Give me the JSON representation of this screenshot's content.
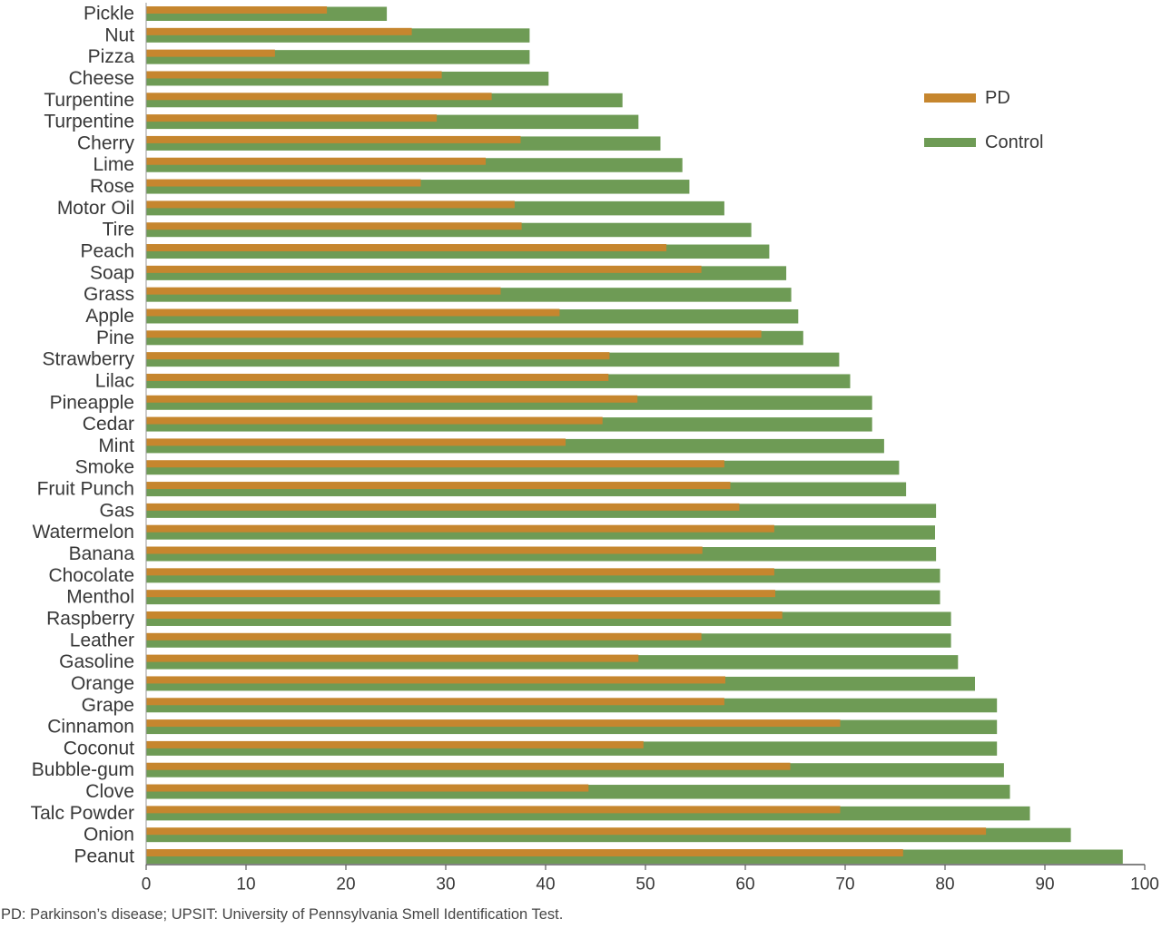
{
  "chart_data": {
    "type": "bar",
    "orientation": "horizontal",
    "title": "",
    "xlabel": "",
    "ylabel": "",
    "categories": [
      "Pickle",
      "Nut",
      "Pizza",
      "Cheese",
      "Turpentine",
      "Turpentine",
      "Cherry",
      "Lime",
      "Rose",
      "Motor Oil",
      "Tire",
      "Peach",
      "Soap",
      "Grass",
      "Apple",
      "Pine",
      "Strawberry",
      "Lilac",
      "Pineapple",
      "Cedar",
      "Mint",
      "Smoke",
      "Fruit Punch",
      "Gas",
      "Watermelon",
      "Banana",
      "Chocolate",
      "Menthol",
      "Raspberry",
      "Leather",
      "Gasoline",
      "Orange",
      "Grape",
      "Cinnamon",
      "Coconut",
      "Bubble-gum",
      "Clove",
      "Talc Powder",
      "Onion",
      "Peanut"
    ],
    "series": [
      {
        "name": "PD",
        "color": "#c6862e",
        "values": [
          18.1,
          26.6,
          12.9,
          29.6,
          34.6,
          29.1,
          37.5,
          34.0,
          27.5,
          36.9,
          37.6,
          52.1,
          55.6,
          35.5,
          41.4,
          61.6,
          46.4,
          46.3,
          49.2,
          45.7,
          42.0,
          57.9,
          58.5,
          59.4,
          62.9,
          55.7,
          62.9,
          63.0,
          63.7,
          55.6,
          49.3,
          58.0,
          57.9,
          69.5,
          49.8,
          64.5,
          44.3,
          69.5,
          84.1,
          75.8
        ]
      },
      {
        "name": "Control",
        "color": "#6e9b55",
        "values": [
          24.1,
          38.4,
          38.4,
          40.3,
          47.7,
          49.3,
          51.5,
          53.7,
          54.4,
          57.9,
          60.6,
          62.4,
          64.1,
          64.6,
          65.3,
          65.8,
          69.4,
          70.5,
          72.7,
          72.7,
          73.9,
          75.4,
          76.1,
          79.1,
          79.0,
          79.1,
          79.5,
          79.5,
          80.6,
          80.6,
          81.3,
          83.0,
          85.2,
          85.2,
          85.2,
          85.9,
          86.5,
          88.5,
          92.6,
          97.8
        ]
      }
    ],
    "xlim": [
      0,
      100
    ],
    "xticks": [
      0,
      10,
      20,
      30,
      40,
      50,
      60,
      70,
      80,
      90,
      100
    ],
    "grid": false,
    "legend_position": "top-right"
  },
  "footnote": "PD: Parkinson’s disease; UPSIT: University of Pennsylvania Smell Identification Test."
}
